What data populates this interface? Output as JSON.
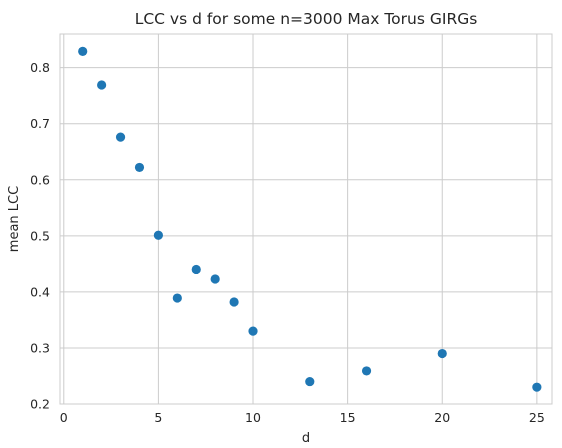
{
  "chart_data": {
    "type": "scatter",
    "title": "LCC vs d for some n=3000 Max Torus GIRGs",
    "xlabel": "d",
    "ylabel": "mean LCC",
    "xlim": [
      -0.2,
      25.8
    ],
    "ylim": [
      0.2,
      0.86
    ],
    "xticks": [
      0,
      5,
      10,
      15,
      20,
      25
    ],
    "yticks": [
      0.2,
      0.3,
      0.4,
      0.5,
      0.6,
      0.7,
      0.8
    ],
    "xtick_labels": [
      "0",
      "5",
      "10",
      "15",
      "20",
      "25"
    ],
    "ytick_labels": [
      "0.2",
      "0.3",
      "0.4",
      "0.5",
      "0.6",
      "0.7",
      "0.8"
    ],
    "grid": true,
    "marker_color": "#1f77b4",
    "points": [
      {
        "x": 1,
        "y": 0.829
      },
      {
        "x": 2,
        "y": 0.769
      },
      {
        "x": 3,
        "y": 0.676
      },
      {
        "x": 4,
        "y": 0.622
      },
      {
        "x": 5,
        "y": 0.501
      },
      {
        "x": 6,
        "y": 0.389
      },
      {
        "x": 7,
        "y": 0.44
      },
      {
        "x": 8,
        "y": 0.423
      },
      {
        "x": 9,
        "y": 0.382
      },
      {
        "x": 10,
        "y": 0.33
      },
      {
        "x": 13,
        "y": 0.24
      },
      {
        "x": 16,
        "y": 0.259
      },
      {
        "x": 20,
        "y": 0.29
      },
      {
        "x": 25,
        "y": 0.23
      }
    ]
  }
}
